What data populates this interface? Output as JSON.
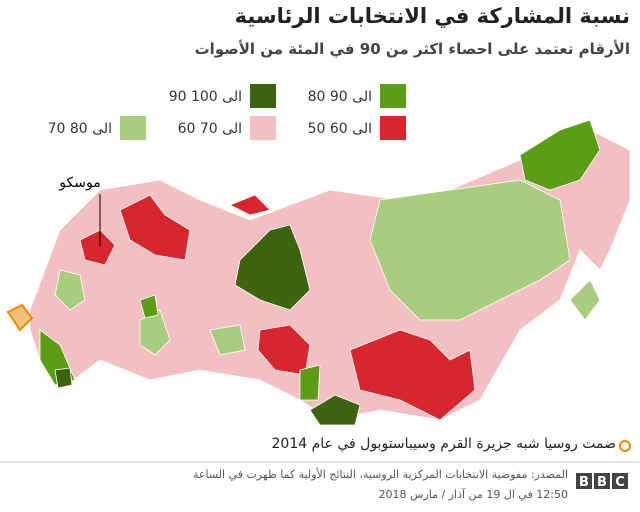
{
  "header": {
    "title": "نسبة المشاركة في الانتخابات الرئاسية",
    "subtitle": "الأرقام تعتمد على احصاء اكثر من 90 في المئة من الأصوات"
  },
  "legend": [
    {
      "label": "80 الى 90",
      "color": "#5b9e16"
    },
    {
      "label": "90 الى 100",
      "color": "#3d6510"
    },
    {
      "label": "50 الى 60",
      "color": "#d8262e"
    },
    {
      "label": "60 الى 70",
      "color": "#f3bfc2"
    },
    {
      "label": "70 الى 80",
      "color": "#a9cd7f"
    }
  ],
  "map": {
    "label": "موسكو"
  },
  "note": "ضمت روسيا شبه جزيرة القرم وسيباستوبول في عام 2014",
  "footer": {
    "source": "المصدر: مفوضية الانتخابات المركزية الروسية، النتائج الأولية كما ظهرت في الساعة",
    "date": "12:50 في ال 19 من آذار / مارس 2018",
    "brand": [
      "B",
      "B",
      "C"
    ]
  }
}
